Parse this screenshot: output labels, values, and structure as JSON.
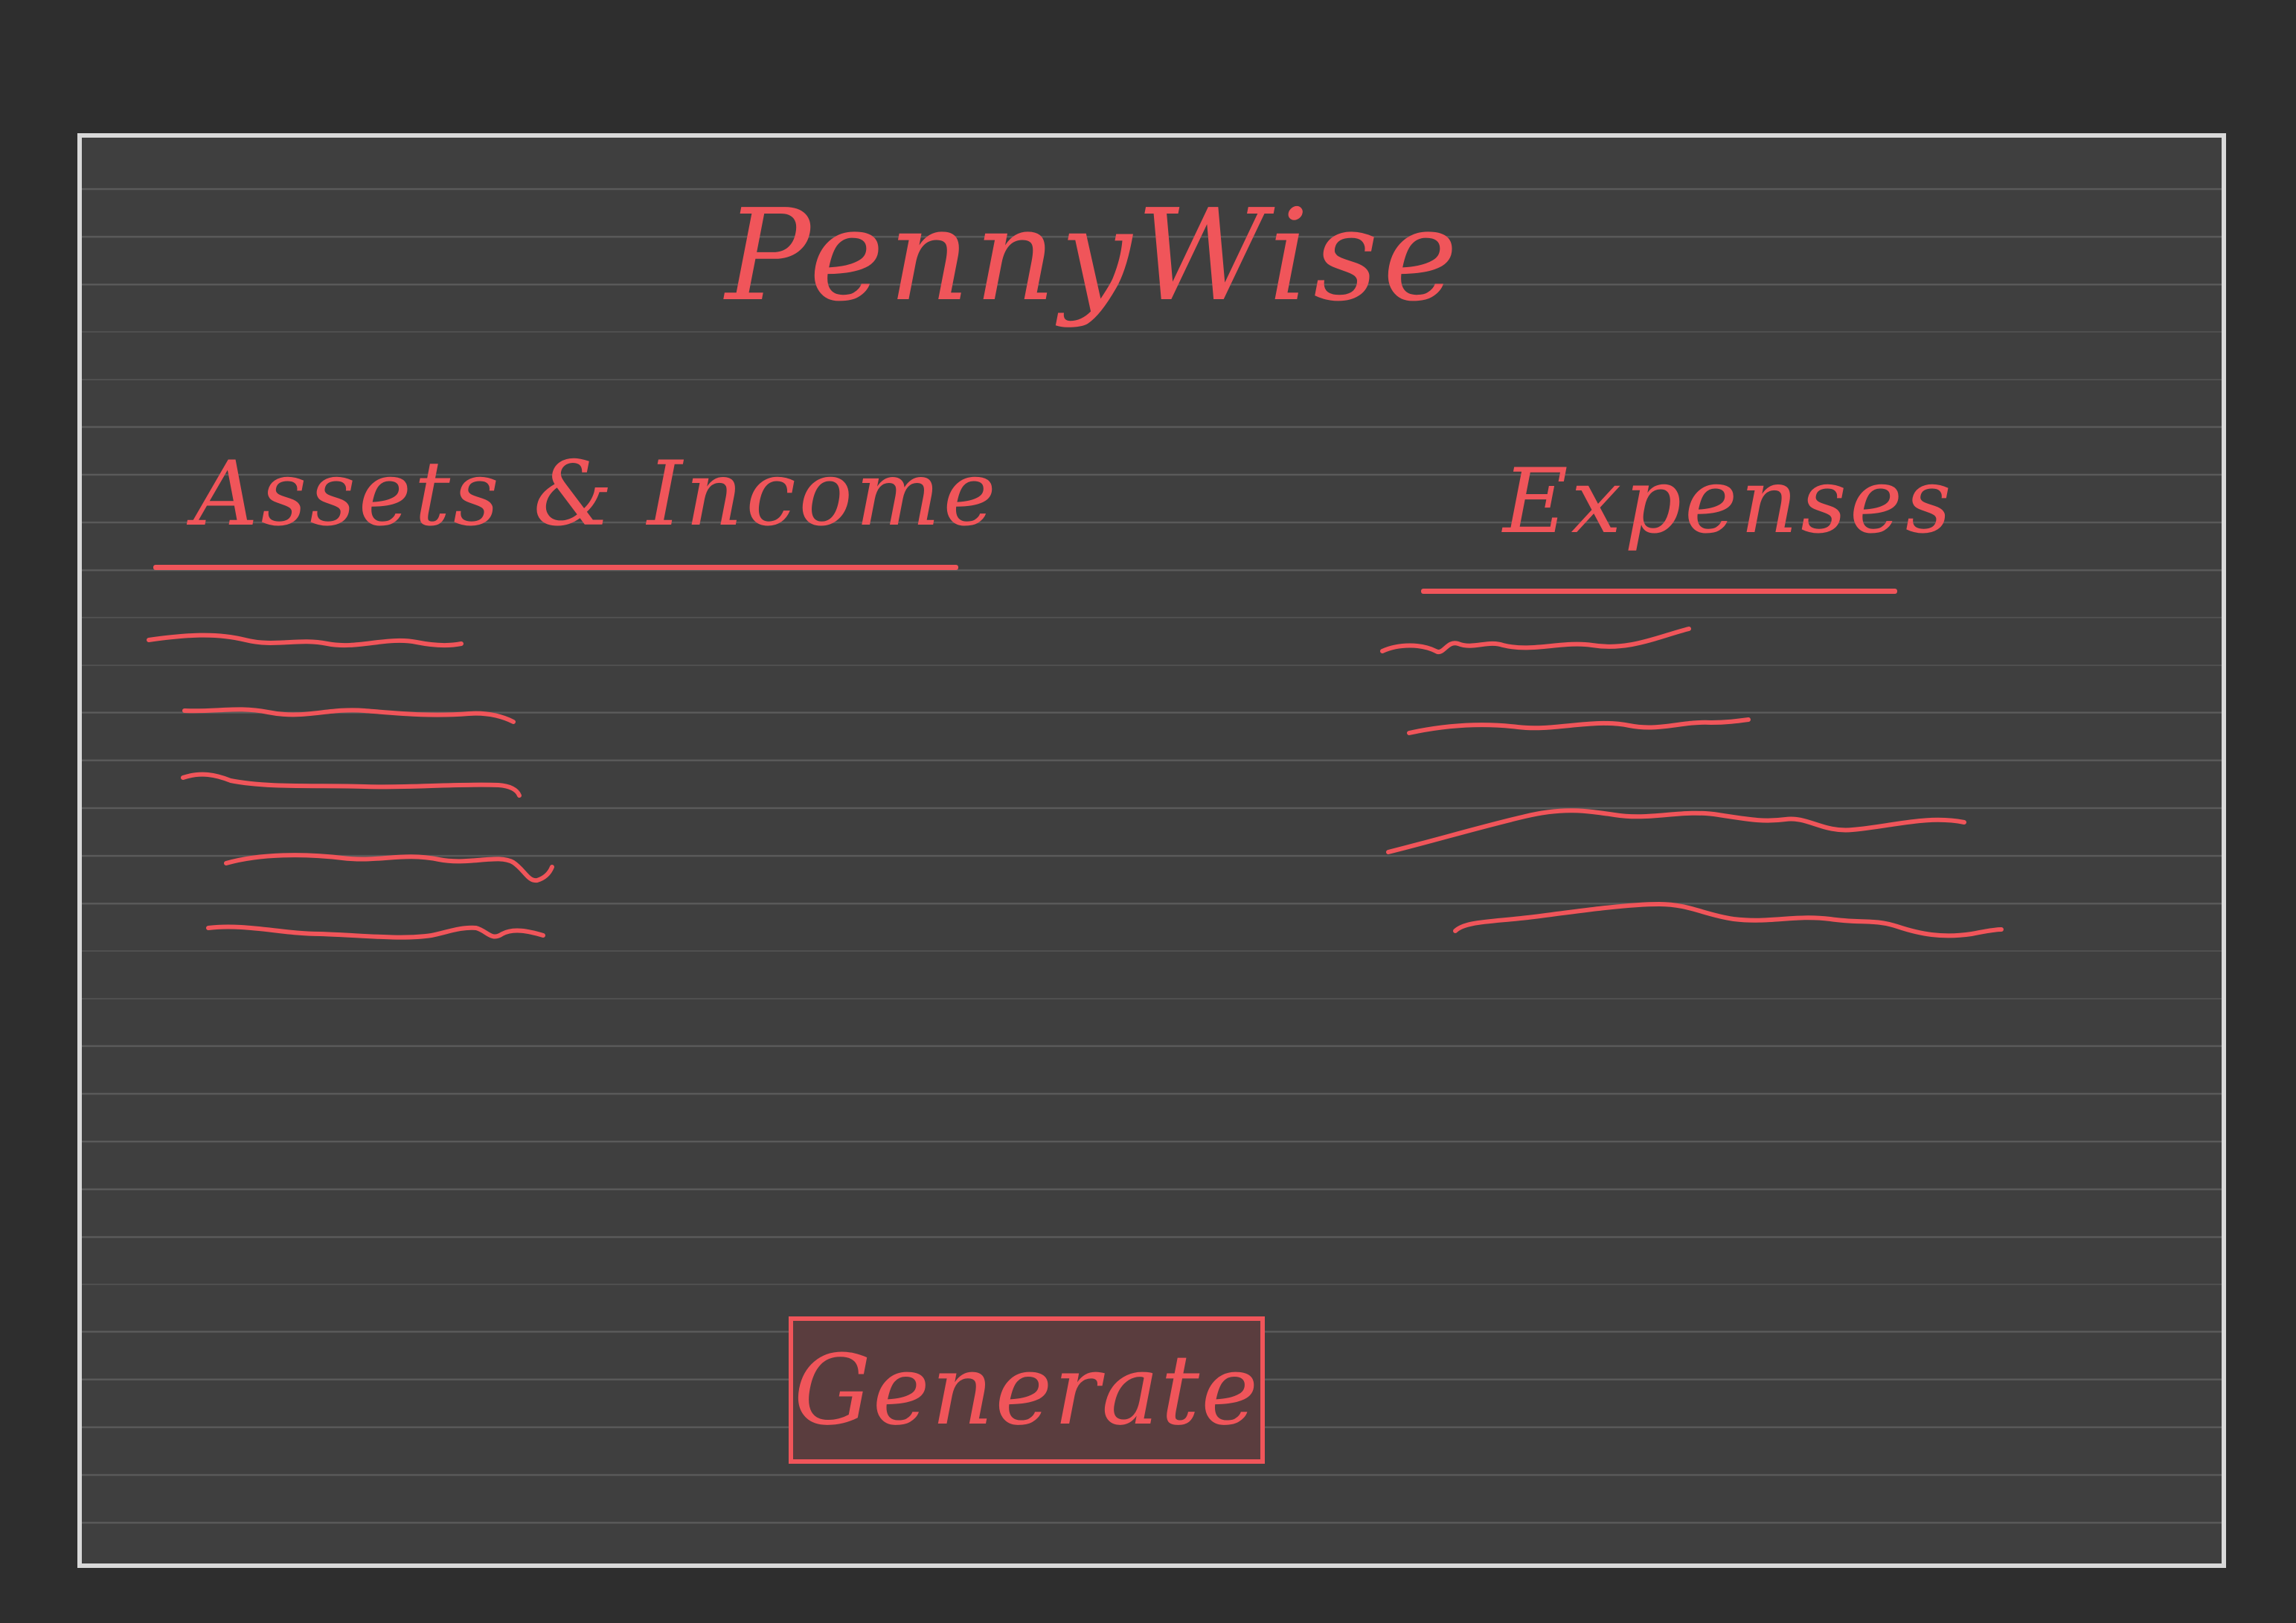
{
  "app": {
    "title": "PennyWise"
  },
  "columns": {
    "assets": {
      "heading": "Assets & Income",
      "item_count_shown": 5
    },
    "expenses": {
      "heading": "Expenses",
      "item_count_shown": 4
    }
  },
  "actions": {
    "generate_label": "Generate"
  },
  "colors": {
    "ink": "#f0555a",
    "paper": "#3f3f3f",
    "background": "#2e2e2e",
    "frame": "#d9d9d9",
    "ruled_line": "#5c5c5c",
    "button_fill": "#5a3d3e"
  }
}
